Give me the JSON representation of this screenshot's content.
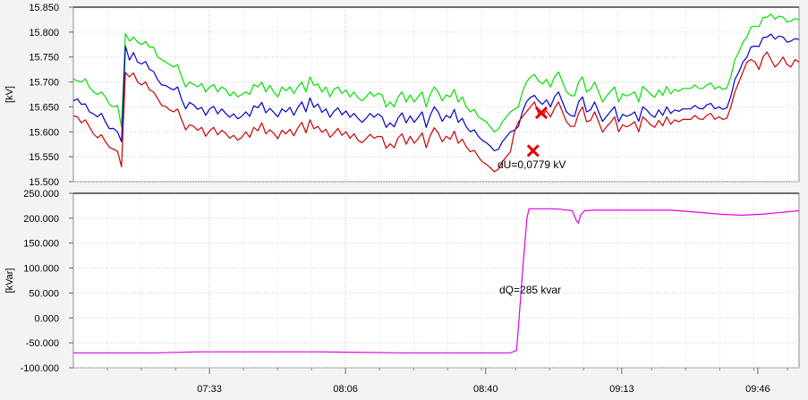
{
  "chart_data": [
    {
      "type": "line",
      "ylabel": "[kV]",
      "ylim": [
        15.5,
        15.85
      ],
      "yticks": [
        "15.850",
        "15.800",
        "15.750",
        "15.700",
        "15.650",
        "15.600",
        "15.550",
        "15.500"
      ],
      "yticks_values": [
        15.85,
        15.8,
        15.75,
        15.7,
        15.65,
        15.6,
        15.55,
        15.5
      ],
      "xlim_minutes": [
        420,
        596
      ],
      "grid": true,
      "annotation": "dU=0,0779 kV",
      "markers": [
        {
          "x_minutes": 531.5,
          "y": 15.562
        },
        {
          "x_minutes": 533.5,
          "y": 15.638
        }
      ],
      "series": [
        {
          "color": "#00e000",
          "y": [
            15.706,
            15.702,
            15.7,
            15.706,
            15.69,
            15.68,
            15.675,
            15.68,
            15.67,
            15.655,
            15.65,
            15.653,
            15.61,
            15.797,
            15.782,
            15.79,
            15.78,
            15.775,
            15.781,
            15.77,
            15.77,
            15.75,
            15.745,
            15.74,
            15.735,
            15.73,
            15.735,
            15.71,
            15.69,
            15.7,
            15.695,
            15.69,
            15.697,
            15.68,
            15.69,
            15.695,
            15.68,
            15.69,
            15.685,
            15.672,
            15.68,
            15.67,
            15.675,
            15.68,
            15.675,
            15.695,
            15.69,
            15.7,
            15.68,
            15.693,
            15.68,
            15.67,
            15.69,
            15.682,
            15.69,
            15.677,
            15.69,
            15.7,
            15.68,
            15.71,
            15.693,
            15.696,
            15.68,
            15.69,
            15.67,
            15.685,
            15.69,
            15.677,
            15.684,
            15.67,
            15.68,
            15.668,
            15.662,
            15.67,
            15.68,
            15.671,
            15.677,
            15.674,
            15.65,
            15.66,
            15.65,
            15.67,
            15.68,
            15.66,
            15.674,
            15.66,
            15.67,
            15.68,
            15.65,
            15.675,
            15.69,
            15.68,
            15.662,
            15.674,
            15.67,
            15.685,
            15.66,
            15.67,
            15.65,
            15.64,
            15.645,
            15.63,
            15.625,
            15.62,
            15.61,
            15.6,
            15.605,
            15.62,
            15.63,
            15.64,
            15.645,
            15.65,
            15.68,
            15.7,
            15.71,
            15.715,
            15.702,
            15.696,
            15.705,
            15.69,
            15.71,
            15.72,
            15.7,
            15.68,
            15.673,
            15.672,
            15.7,
            15.71,
            15.68,
            15.685,
            15.7,
            15.68,
            15.66,
            15.672,
            15.681,
            15.69,
            15.66,
            15.676,
            15.672,
            15.675,
            15.68,
            15.66,
            15.691,
            15.684,
            15.675,
            15.669,
            15.684,
            15.673,
            15.691,
            15.676,
            15.685,
            15.681,
            15.687,
            15.687,
            15.687,
            15.694,
            15.687,
            15.687,
            15.694,
            15.698,
            15.686,
            15.691,
            15.685,
            15.688,
            15.711,
            15.745,
            15.76,
            15.78,
            15.79,
            15.81,
            15.812,
            15.811,
            15.829,
            15.83,
            15.836,
            15.826,
            15.832,
            15.83,
            15.82,
            15.822,
            15.827,
            15.825
          ]
        },
        {
          "color": "#0000cc",
          "y": [
            15.662,
            15.666,
            15.655,
            15.656,
            15.64,
            15.636,
            15.63,
            15.637,
            15.62,
            15.606,
            15.607,
            15.6,
            15.58,
            15.772,
            15.744,
            15.759,
            15.74,
            15.736,
            15.741,
            15.725,
            15.721,
            15.705,
            15.694,
            15.693,
            15.688,
            15.684,
            15.69,
            15.665,
            15.646,
            15.659,
            15.654,
            15.645,
            15.649,
            15.633,
            15.646,
            15.651,
            15.636,
            15.646,
            15.637,
            15.629,
            15.636,
            15.626,
            15.631,
            15.64,
            15.631,
            15.652,
            15.648,
            15.659,
            15.638,
            15.647,
            15.639,
            15.63,
            15.646,
            15.64,
            15.649,
            15.633,
            15.649,
            15.66,
            15.64,
            15.668,
            15.649,
            15.656,
            15.639,
            15.646,
            15.629,
            15.641,
            15.648,
            15.634,
            15.642,
            15.629,
            15.637,
            15.627,
            15.619,
            15.627,
            15.637,
            15.629,
            15.636,
            15.63,
            15.609,
            15.618,
            15.61,
            15.628,
            15.638,
            15.618,
            15.632,
            15.619,
            15.629,
            15.64,
            15.609,
            15.633,
            15.65,
            15.64,
            15.621,
            15.633,
            15.628,
            15.645,
            15.619,
            15.627,
            15.61,
            15.6,
            15.604,
            15.591,
            15.583,
            15.578,
            15.571,
            15.562,
            15.565,
            15.58,
            15.59,
            15.6,
            15.603,
            15.611,
            15.64,
            15.66,
            15.669,
            15.673,
            15.662,
            15.655,
            15.664,
            15.65,
            15.67,
            15.68,
            15.66,
            15.64,
            15.633,
            15.631,
            15.66,
            15.67,
            15.64,
            15.644,
            15.66,
            15.64,
            15.621,
            15.631,
            15.641,
            15.65,
            15.62,
            15.635,
            15.631,
            15.634,
            15.64,
            15.621,
            15.65,
            15.644,
            15.634,
            15.629,
            15.644,
            15.633,
            15.65,
            15.637,
            15.644,
            15.641,
            15.646,
            15.646,
            15.646,
            15.653,
            15.647,
            15.646,
            15.654,
            15.657,
            15.646,
            15.65,
            15.645,
            15.648,
            15.671,
            15.705,
            15.72,
            15.74,
            15.75,
            15.77,
            15.772,
            15.771,
            15.789,
            15.79,
            15.796,
            15.786,
            15.792,
            15.79,
            15.78,
            15.782,
            15.787,
            15.785
          ]
        },
        {
          "color": "#cc0000",
          "y": [
            15.632,
            15.63,
            15.618,
            15.624,
            15.61,
            15.596,
            15.588,
            15.594,
            15.58,
            15.569,
            15.565,
            15.561,
            15.53,
            15.719,
            15.71,
            15.718,
            15.7,
            15.694,
            15.7,
            15.684,
            15.68,
            15.667,
            15.653,
            15.651,
            15.644,
            15.64,
            15.646,
            15.624,
            15.604,
            15.614,
            15.611,
            15.603,
            15.609,
            15.591,
            15.602,
            15.609,
            15.594,
            15.603,
            15.597,
            15.587,
            15.593,
            15.583,
            15.589,
            15.6,
            15.589,
            15.609,
            15.602,
            15.618,
            15.596,
            15.604,
            15.597,
            15.586,
            15.603,
            15.596,
            15.605,
            15.592,
            15.608,
            15.619,
            15.598,
            15.624,
            15.606,
            15.611,
            15.599,
            15.605,
            15.589,
            15.597,
            15.607,
            15.593,
            15.6,
            15.587,
            15.596,
            15.583,
            15.578,
            15.586,
            15.595,
            15.587,
            15.591,
            15.59,
            15.567,
            15.576,
            15.568,
            15.588,
            15.596,
            15.575,
            15.591,
            15.577,
            15.586,
            15.598,
            15.568,
            15.592,
            15.608,
            15.598,
            15.58,
            15.591,
            15.585,
            15.601,
            15.577,
            15.585,
            15.57,
            15.56,
            15.563,
            15.55,
            15.54,
            15.535,
            15.528,
            15.52,
            15.525,
            15.54,
            15.55,
            15.56,
            15.6,
            15.62,
            15.63,
            15.64,
            15.65,
            15.66,
            15.637,
            15.633,
            15.642,
            15.63,
            15.647,
            15.66,
            15.64,
            15.62,
            15.611,
            15.611,
            15.637,
            15.65,
            15.62,
            15.623,
            15.64,
            15.62,
            15.599,
            15.61,
            15.619,
            15.63,
            15.6,
            15.614,
            15.61,
            15.614,
            15.62,
            15.6,
            15.63,
            15.623,
            15.614,
            15.609,
            15.623,
            15.612,
            15.63,
            15.615,
            15.624,
            15.62,
            15.625,
            15.625,
            15.625,
            15.633,
            15.626,
            15.625,
            15.633,
            15.637,
            15.625,
            15.63,
            15.625,
            15.627,
            15.65,
            15.68,
            15.7,
            15.72,
            15.74,
            15.745,
            15.74,
            15.725,
            15.75,
            15.76,
            15.745,
            15.73,
            15.738,
            15.75,
            15.735,
            15.73,
            15.745,
            15.74
          ]
        }
      ]
    },
    {
      "type": "line",
      "ylabel": "[kVar]",
      "ylim": [
        -100,
        250
      ],
      "yticks": [
        "250.000",
        "200.000",
        "150.000",
        "100.000",
        "50.000",
        "0.000",
        "-50.000",
        "-100.000"
      ],
      "yticks_values": [
        250,
        200,
        150,
        100,
        50,
        0,
        -50,
        -100
      ],
      "xlim_minutes": [
        420,
        596
      ],
      "xticks": [
        "07:33",
        "08:06",
        "08:40",
        "09:13",
        "09:46"
      ],
      "xticks_minutes": [
        453,
        486,
        520,
        553,
        586
      ],
      "grid": true,
      "annotation": "dQ=285 kvar",
      "series": [
        {
          "color": "#e000e0",
          "points": [
            [
              420,
              -70
            ],
            [
              440,
              -70
            ],
            [
              450,
              -68
            ],
            [
              480,
              -68
            ],
            [
              500,
              -70
            ],
            [
              526,
              -70
            ],
            [
              527.5,
              -65
            ],
            [
              529,
              100
            ],
            [
              530,
              200
            ],
            [
              530.5,
              219
            ],
            [
              536,
              219
            ],
            [
              538,
              218
            ],
            [
              541,
              215
            ],
            [
              542,
              195
            ],
            [
              542.5,
              190
            ],
            [
              543,
              206
            ],
            [
              544,
              215
            ],
            [
              546,
              216
            ],
            [
              565,
              216
            ],
            [
              570,
              213
            ],
            [
              577,
              208
            ],
            [
              582,
              206
            ],
            [
              587,
              208
            ],
            [
              592,
              212
            ],
            [
              597,
              215
            ],
            [
              596,
              215
            ]
          ]
        }
      ]
    }
  ],
  "colors": {
    "background": "#f3f3f3",
    "plot": "#ffffff",
    "grid": "#c8c8c8"
  }
}
